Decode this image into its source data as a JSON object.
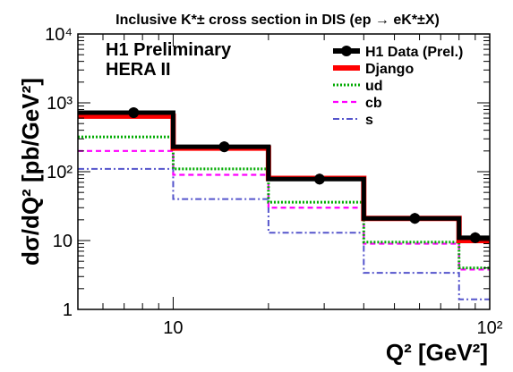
{
  "chart_data": {
    "type": "line",
    "title": "Inclusive K*± cross section in DIS (ep → eK*±X)",
    "annotations": [
      "H1 Preliminary",
      "HERA II"
    ],
    "xlabel": "Q² [GeV²]",
    "ylabel": "dσ/dQ² [pb/GeV²]",
    "xscale": "log",
    "yscale": "log",
    "xlim": [
      5,
      100
    ],
    "ylim": [
      1,
      10000
    ],
    "x_ticks": [
      "10",
      "10²"
    ],
    "y_ticks": [
      "1",
      "10",
      "10²",
      "10³",
      "10⁴"
    ],
    "legend_position": "top-right",
    "bins": [
      [
        5,
        10
      ],
      [
        10,
        20
      ],
      [
        20,
        40
      ],
      [
        40,
        80
      ],
      [
        80,
        100
      ]
    ],
    "series": [
      {
        "name": "H1 Data (Prel.)",
        "style": "points",
        "color": "#000000",
        "x": [
          7.5,
          14.5,
          29,
          58,
          90
        ],
        "values": [
          720,
          230,
          78,
          21,
          11
        ]
      },
      {
        "name": "Django",
        "style": "histogram",
        "color": "#ff0000",
        "values": [
          640,
          220,
          80,
          21,
          10
        ]
      },
      {
        "name": "ud",
        "style": "histogram",
        "color": "#00aa00",
        "values": [
          320,
          110,
          36,
          9.5,
          4
        ]
      },
      {
        "name": "cb",
        "style": "histogram",
        "color": "#ff00ff",
        "values": [
          200,
          90,
          30,
          9,
          3.8
        ]
      },
      {
        "name": "s",
        "style": "histogram",
        "color": "#5555cc",
        "values": [
          110,
          40,
          13,
          3.4,
          1.4
        ]
      }
    ]
  }
}
